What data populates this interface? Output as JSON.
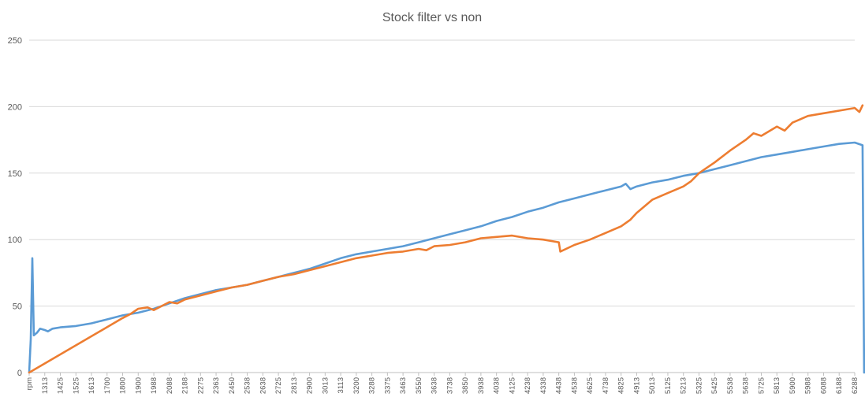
{
  "chart_data": {
    "type": "line",
    "title": "Stock filter vs non",
    "xlabel": "",
    "ylabel": "",
    "ylim": [
      0,
      250
    ],
    "yticks": [
      0,
      50,
      100,
      150,
      200,
      250
    ],
    "grid": true,
    "legend": "none",
    "x_tick_labels": [
      "rpm",
      "1313",
      "1425",
      "1525",
      "1613",
      "1700",
      "1800",
      "1900",
      "1988",
      "2088",
      "2188",
      "2275",
      "2363",
      "2450",
      "2538",
      "2638",
      "2725",
      "2813",
      "2900",
      "3013",
      "3113",
      "3200",
      "3288",
      "3375",
      "3463",
      "3550",
      "3638",
      "3738",
      "3850",
      "3938",
      "4038",
      "4125",
      "4238",
      "4338",
      "4438",
      "4538",
      "4625",
      "4738",
      "4825",
      "4913",
      "5013",
      "5125",
      "5213",
      "5325",
      "5425",
      "5538",
      "5638",
      "5725",
      "5813",
      "5900",
      "5988",
      "6088",
      "6188",
      "6288"
    ],
    "series": [
      {
        "color": "#5b9bd5",
        "points": [
          [
            0,
            0
          ],
          [
            0.1,
            25
          ],
          [
            0.2,
            86
          ],
          [
            0.3,
            28
          ],
          [
            0.5,
            30
          ],
          [
            0.7,
            33
          ],
          [
            1,
            32
          ],
          [
            1.2,
            31
          ],
          [
            1.5,
            33
          ],
          [
            2,
            34
          ],
          [
            3,
            35
          ],
          [
            4,
            37
          ],
          [
            5,
            40
          ],
          [
            6,
            43
          ],
          [
            7,
            45
          ],
          [
            8,
            48
          ],
          [
            9,
            52
          ],
          [
            10,
            56
          ],
          [
            11,
            59
          ],
          [
            12,
            62
          ],
          [
            13,
            64
          ],
          [
            14,
            66
          ],
          [
            15,
            69
          ],
          [
            16,
            72
          ],
          [
            17,
            75
          ],
          [
            18,
            78
          ],
          [
            19,
            82
          ],
          [
            20,
            86
          ],
          [
            21,
            89
          ],
          [
            22,
            91
          ],
          [
            23,
            93
          ],
          [
            24,
            95
          ],
          [
            25,
            98
          ],
          [
            26,
            101
          ],
          [
            27,
            104
          ],
          [
            28,
            107
          ],
          [
            29,
            110
          ],
          [
            30,
            114
          ],
          [
            31,
            117
          ],
          [
            32,
            121
          ],
          [
            33,
            124
          ],
          [
            34,
            128
          ],
          [
            35,
            131
          ],
          [
            36,
            134
          ],
          [
            37,
            137
          ],
          [
            38,
            140
          ],
          [
            38.3,
            142
          ],
          [
            38.6,
            138
          ],
          [
            39,
            140
          ],
          [
            40,
            143
          ],
          [
            41,
            145
          ],
          [
            42,
            148
          ],
          [
            43,
            150
          ],
          [
            44,
            153
          ],
          [
            45,
            156
          ],
          [
            46,
            159
          ],
          [
            47,
            162
          ],
          [
            48,
            164
          ],
          [
            49,
            166
          ],
          [
            50,
            168
          ],
          [
            51,
            170
          ],
          [
            52,
            172
          ],
          [
            53,
            173
          ],
          [
            53.5,
            171
          ],
          [
            53.6,
            0
          ]
        ]
      },
      {
        "color": "#ed7d31",
        "points": [
          [
            0,
            0
          ],
          [
            6,
            41
          ],
          [
            6.5,
            44
          ],
          [
            7,
            48
          ],
          [
            7.6,
            49
          ],
          [
            8,
            47
          ],
          [
            8.5,
            50
          ],
          [
            9,
            53
          ],
          [
            9.5,
            52
          ],
          [
            10,
            55
          ],
          [
            11,
            58
          ],
          [
            12,
            61
          ],
          [
            13,
            64
          ],
          [
            14,
            66
          ],
          [
            15,
            69
          ],
          [
            16,
            72
          ],
          [
            17,
            74
          ],
          [
            18,
            77
          ],
          [
            19,
            80
          ],
          [
            20,
            83
          ],
          [
            21,
            86
          ],
          [
            22,
            88
          ],
          [
            23,
            90
          ],
          [
            24,
            91
          ],
          [
            25,
            93
          ],
          [
            25.5,
            92
          ],
          [
            26,
            95
          ],
          [
            27,
            96
          ],
          [
            28,
            98
          ],
          [
            29,
            101
          ],
          [
            30,
            102
          ],
          [
            31,
            103
          ],
          [
            32,
            101
          ],
          [
            33,
            100
          ],
          [
            34,
            98
          ],
          [
            34.1,
            91
          ],
          [
            35,
            96
          ],
          [
            36,
            100
          ],
          [
            37,
            105
          ],
          [
            38,
            110
          ],
          [
            38.6,
            115
          ],
          [
            39,
            120
          ],
          [
            39.5,
            125
          ],
          [
            40,
            130
          ],
          [
            41,
            135
          ],
          [
            42,
            140
          ],
          [
            42.5,
            144
          ],
          [
            43,
            150
          ],
          [
            44,
            158
          ],
          [
            45,
            167
          ],
          [
            46,
            175
          ],
          [
            46.5,
            180
          ],
          [
            47,
            178
          ],
          [
            48,
            185
          ],
          [
            48.5,
            182
          ],
          [
            49,
            188
          ],
          [
            50,
            193
          ],
          [
            51,
            195
          ],
          [
            52,
            197
          ],
          [
            53,
            199
          ],
          [
            53.3,
            196
          ],
          [
            53.5,
            201
          ]
        ]
      }
    ]
  }
}
